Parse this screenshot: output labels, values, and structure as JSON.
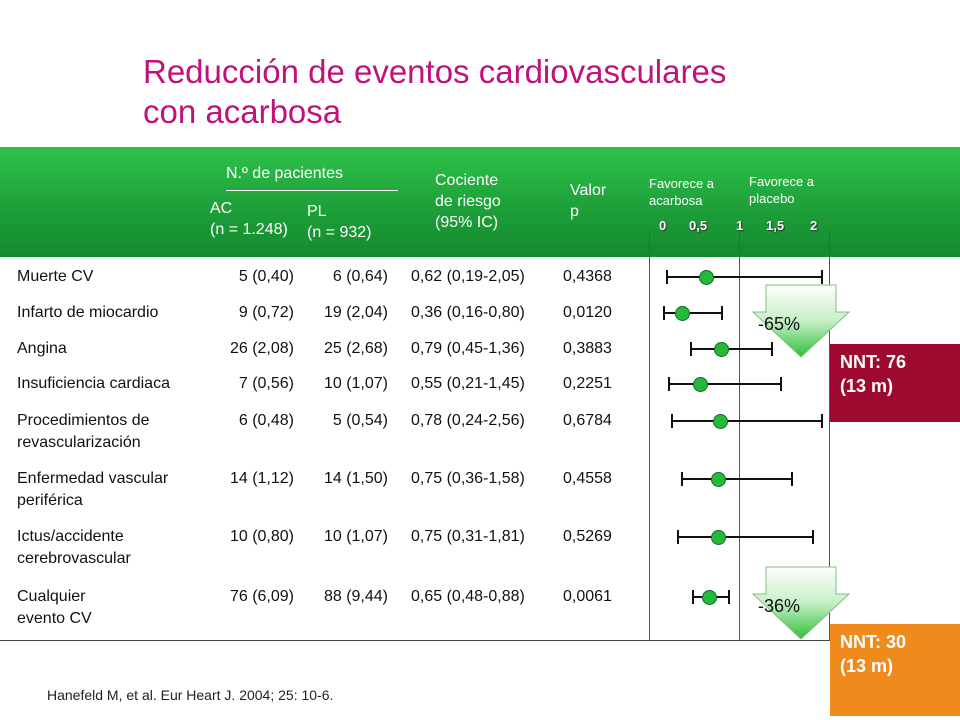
{
  "title": {
    "line1": "Reducción de eventos cardiovasculares",
    "line2": "con acarbosa"
  },
  "header": {
    "patients_label": "N.º de pacientes",
    "ac_label": "AC",
    "ac_n": "(n = 1.248)",
    "pl_label": "PL",
    "pl_n": "(n = 932)",
    "hr_line1": "Cociente",
    "hr_line2": "de riesgo",
    "hr_line3": "(95% IC)",
    "p_line1": "Valor",
    "p_line2": "p",
    "favors_acarbose_1": "Favorece a",
    "favors_acarbose_2": "acarbosa",
    "favors_placebo_1": "Favorece a",
    "favors_placebo_2": "placebo",
    "ticks": [
      "0",
      "0,5",
      "1",
      "1,5",
      "2"
    ]
  },
  "rows": [
    {
      "name1": "Muerte CV",
      "name2": "",
      "ac": "5 (0,40)",
      "pl": "6 (0,64)",
      "hr": "0,62 (0,19-2,05)",
      "p": "0,4368",
      "est": 0.62,
      "lo": 0.19,
      "hi": 2.05
    },
    {
      "name1": "Infarto de miocardio",
      "name2": "",
      "ac": "9 (0,72)",
      "pl": "19 (2,04)",
      "hr": "0,36 (0,16-0,80)",
      "p": "0,0120",
      "est": 0.36,
      "lo": 0.16,
      "hi": 0.8
    },
    {
      "name1": "Angina",
      "name2": "",
      "ac": "26 (2,08)",
      "pl": "25 (2,68)",
      "hr": "0,79 (0,45-1,36)",
      "p": "0,3883",
      "est": 0.79,
      "lo": 0.45,
      "hi": 1.36
    },
    {
      "name1": "Insuficiencia cardiaca",
      "name2": "",
      "ac": "7 (0,56)",
      "pl": "10 (1,07)",
      "hr": "0,55 (0,21-1,45)",
      "p": "0,2251",
      "est": 0.55,
      "lo": 0.21,
      "hi": 1.45
    },
    {
      "name1": "Procedimientos de",
      "name2": "revascularización",
      "ac": "6 (0,48)",
      "pl": "5 (0,54)",
      "hr": "0,78 (0,24-2,56)",
      "p": "0,6784",
      "est": 0.78,
      "lo": 0.24,
      "hi": 2.56
    },
    {
      "name1": "Enfermedad vascular",
      "name2": "periférica",
      "ac": "14 (1,12)",
      "pl": "14 (1,50)",
      "hr": "0,75 (0,36-1,58)",
      "p": "0,4558",
      "est": 0.75,
      "lo": 0.36,
      "hi": 1.58
    },
    {
      "name1": "Ictus/accidente",
      "name2": "cerebrovascular",
      "ac": "10 (0,80)",
      "pl": "10 (1,07)",
      "hr": "0,75 (0,31-1,81)",
      "p": "0,5269",
      "est": 0.75,
      "lo": 0.31,
      "hi": 1.81
    },
    {
      "name1": "Cualquier",
      "name2": "evento CV",
      "ac": "76 (6,09)",
      "pl": "88 (9,44)",
      "hr": "0,65 (0,48-0,88)",
      "p": "0,0061",
      "est": 0.65,
      "lo": 0.48,
      "hi": 0.88
    }
  ],
  "reductions": {
    "mi": "-65%",
    "any": "-36%"
  },
  "nnt": {
    "mi_line1": "NNT: 76",
    "mi_line2": "(13 m)",
    "any_line1": "NNT: 30",
    "any_line2": "(13 m)",
    "mi_color": "#9e0a2f",
    "any_color": "#f08a1c"
  },
  "citation": "Hanefeld M, et al. Eur Heart J. 2004; 25: 10-6."
}
